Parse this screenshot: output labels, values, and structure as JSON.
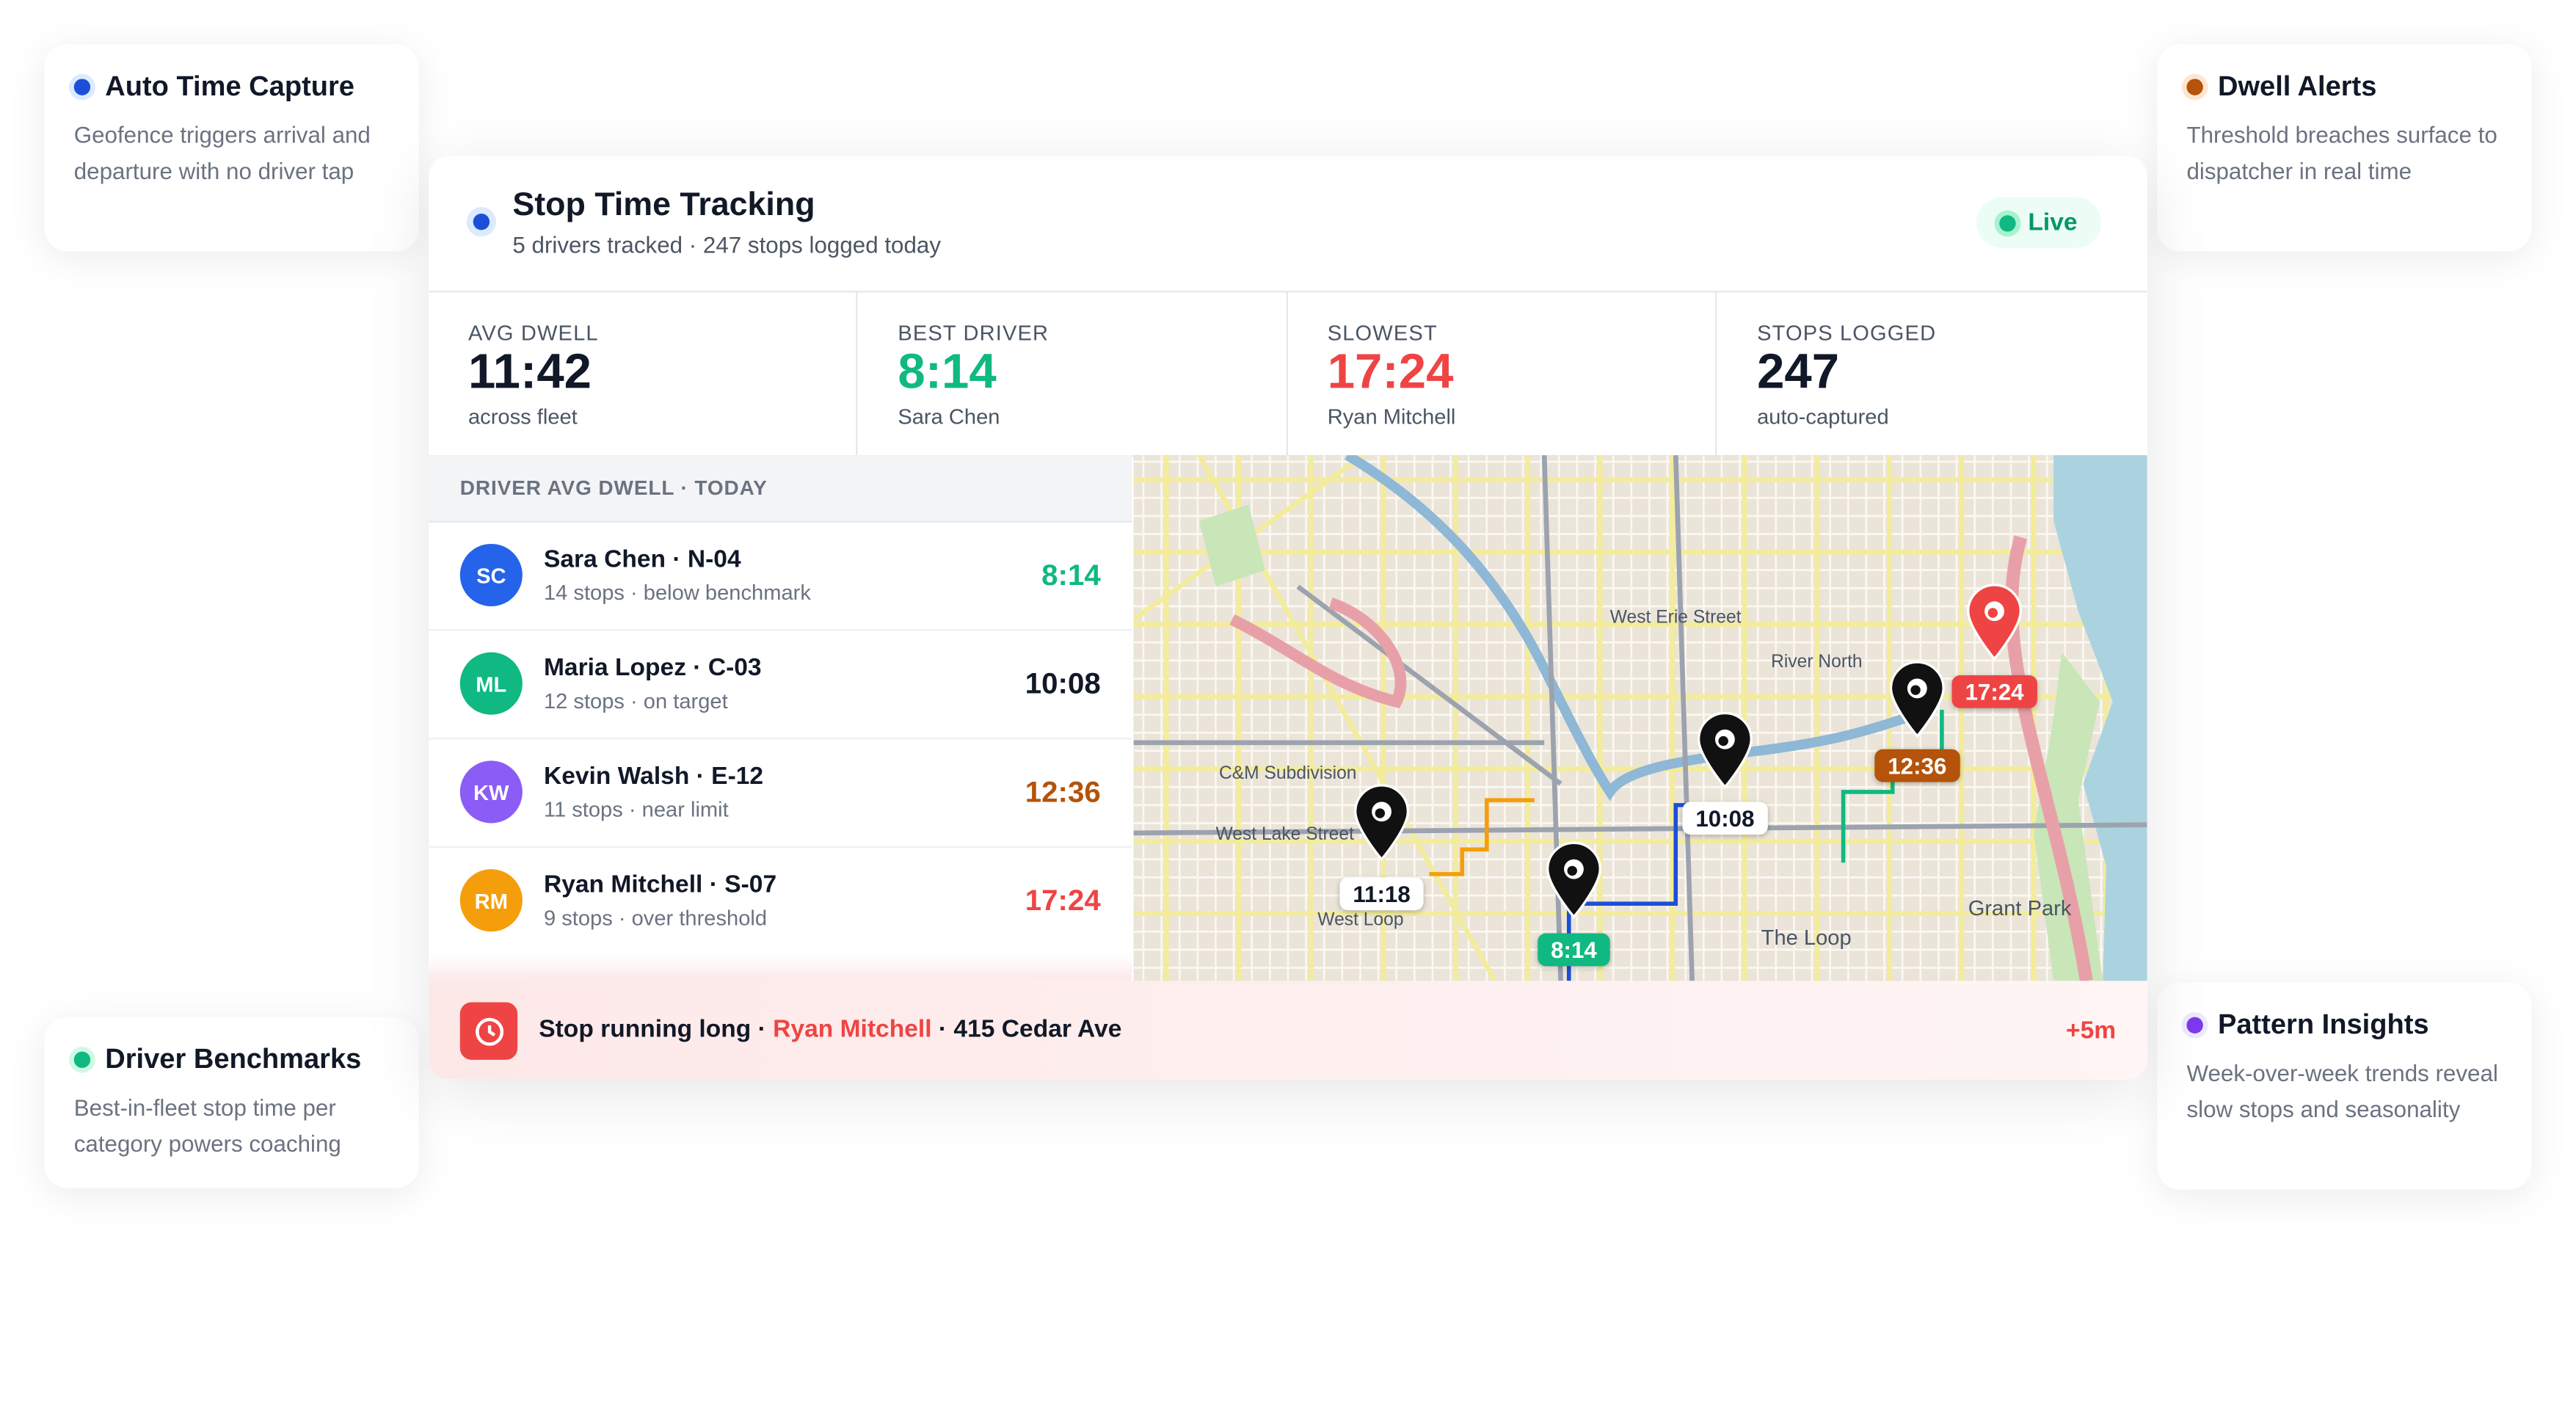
{
  "callouts": [
    {
      "title": "Auto Time Capture",
      "text": "Geofence triggers arrival and departure with no driver tap"
    },
    {
      "title": "Dwell Alerts",
      "text": "Threshold breaches surface to dispatcher in real time"
    },
    {
      "title": "Driver Benchmarks",
      "text": "Best-in-fleet stop time per category powers coaching"
    },
    {
      "title": "Pattern Insights",
      "text": "Week-over-week trends reveal slow stops and seasonality"
    }
  ],
  "header": {
    "title": "Stop Time Tracking",
    "subtitle": "5 drivers tracked · 247 stops logged today",
    "status": "Live"
  },
  "stats": [
    {
      "label": "AVG DWELL",
      "value": "11:42",
      "note": "across fleet"
    },
    {
      "label": "BEST DRIVER",
      "value": "8:14",
      "note": "Sara Chen"
    },
    {
      "label": "SLOWEST",
      "value": "17:24",
      "note": "Ryan Mitchell"
    },
    {
      "label": "STOPS LOGGED",
      "value": "247",
      "note": "auto-captured"
    }
  ],
  "drivers": {
    "heading": "DRIVER AVG DWELL · TODAY",
    "rows": [
      {
        "initials": "SC",
        "name": "Sara Chen · N-04",
        "detail": "14 stops · below benchmark",
        "time": "8:14"
      },
      {
        "initials": "ML",
        "name": "Maria Lopez · C-03",
        "detail": "12 stops · on target",
        "time": "10:08"
      },
      {
        "initials": "KW",
        "name": "Kevin Walsh · E-12",
        "detail": "11 stops · near limit",
        "time": "12:36"
      },
      {
        "initials": "RM",
        "name": "Ryan Mitchell · S-07",
        "detail": "9 stops · over threshold",
        "time": "17:24"
      }
    ]
  },
  "map": {
    "pins": [
      "11:18",
      "10:08",
      "8:14",
      "12:36",
      "17:24"
    ],
    "labels": [
      "River North",
      "West Erie Street",
      "West Lake Street",
      "West Loop",
      "The Loop",
      "Grant Park",
      "C&M Subdivision"
    ]
  },
  "alert": {
    "prefix": "Stop running long ·",
    "name": "Ryan Mitchell",
    "suffix": "· 415 Cedar Ave",
    "delta": "+5m"
  }
}
